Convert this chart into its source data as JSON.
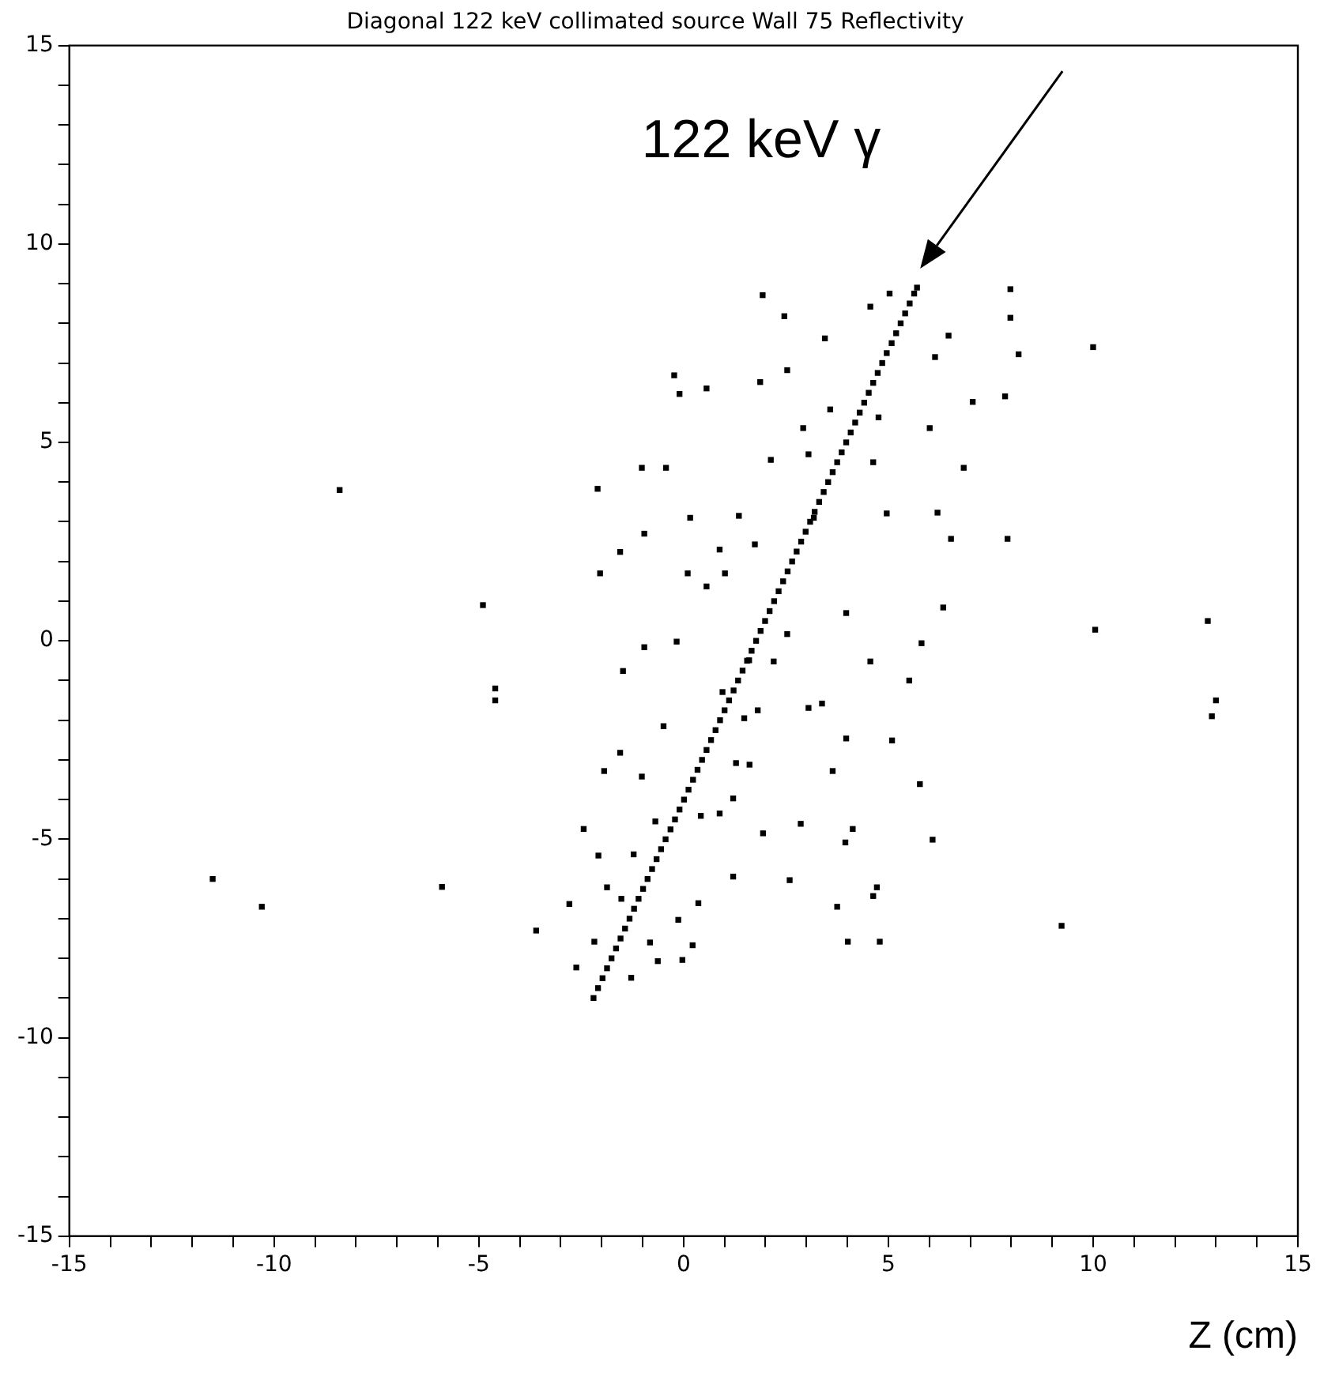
{
  "chart_data": {
    "type": "scatter",
    "title": "Diagonal 122 keV collimated source Wall 75 Reflectivity",
    "xlabel": "Z (cm)",
    "annotations": [
      {
        "text": "122 keV γ",
        "x": 5.7,
        "y": 8.9
      }
    ],
    "xlim": [
      -15,
      15
    ],
    "ylim": [
      -15,
      15
    ],
    "xticks": [
      -15,
      {
        "value": -14,
        "label": null
      },
      {
        "value": -13,
        "label": null
      },
      {
        "value": -12,
        "label": null
      },
      {
        "value": -11,
        "label": null
      },
      -10,
      {
        "value": -9,
        "label": null
      },
      {
        "value": -8,
        "label": null
      },
      {
        "value": -7,
        "label": null
      },
      {
        "value": -6,
        "label": null
      },
      -5,
      {
        "value": -4,
        "label": null
      },
      {
        "value": -3,
        "label": null
      },
      {
        "value": -2,
        "label": null
      },
      {
        "value": -1,
        "label": null
      },
      0,
      {
        "value": 1,
        "label": null
      },
      {
        "value": 2,
        "label": null
      },
      {
        "value": 3,
        "label": null
      },
      {
        "value": 4,
        "label": null
      },
      5,
      {
        "value": 6,
        "label": null
      },
      {
        "value": 7,
        "label": null
      },
      {
        "value": 8,
        "label": null
      },
      {
        "value": 9,
        "label": null
      },
      10,
      {
        "value": 11,
        "label": null
      },
      {
        "value": 12,
        "label": null
      },
      {
        "value": 13,
        "label": null
      },
      {
        "value": 14,
        "label": null
      },
      15
    ],
    "yticks": [
      -15,
      {
        "value": -14,
        "label": null
      },
      {
        "value": -13,
        "label": null
      },
      {
        "value": -12,
        "label": null
      },
      {
        "value": -11,
        "label": null
      },
      -10,
      {
        "value": -9,
        "label": null
      },
      {
        "value": -8,
        "label": null
      },
      {
        "value": -7,
        "label": null
      },
      {
        "value": -6,
        "label": null
      },
      -5,
      {
        "value": -4,
        "label": null
      },
      {
        "value": -3,
        "label": null
      },
      {
        "value": -2,
        "label": null
      },
      {
        "value": -1,
        "label": null
      },
      0,
      {
        "value": 1,
        "label": null
      },
      {
        "value": 2,
        "label": null
      },
      {
        "value": 3,
        "label": null
      },
      {
        "value": 4,
        "label": null
      },
      5,
      {
        "value": 6,
        "label": null
      },
      {
        "value": 7,
        "label": null
      },
      {
        "value": 8,
        "label": null
      },
      {
        "value": 9,
        "label": null
      },
      10,
      {
        "value": 11,
        "label": null
      },
      {
        "value": 12,
        "label": null
      },
      {
        "value": 13,
        "label": null
      },
      {
        "value": 14,
        "label": null
      },
      15
    ],
    "grid": false,
    "legend": false,
    "marker": "square",
    "series": [
      {
        "color": "#000000",
        "x": [
          -2.2,
          -2.09,
          -1.98,
          -1.87,
          -1.76,
          -1.65,
          -1.54,
          -1.43,
          -1.32,
          -1.21,
          -1.1,
          -0.99,
          -0.88,
          -0.77,
          -0.66,
          -0.55,
          -0.44,
          -0.32,
          -0.21,
          -0.1,
          0.01,
          0.12,
          0.23,
          0.34,
          0.45,
          0.56,
          0.67,
          0.78,
          0.89,
          1.0,
          1.11,
          1.22,
          1.33,
          1.44,
          1.55,
          1.66,
          1.77,
          1.88,
          1.99,
          2.1,
          2.21,
          2.32,
          2.43,
          2.54,
          2.65,
          2.76,
          2.87,
          2.98,
          3.09,
          3.2,
          3.31,
          3.42,
          3.53,
          3.64,
          3.75,
          3.86,
          3.97,
          4.08,
          4.19,
          4.3,
          4.41,
          4.52,
          4.63,
          4.74,
          4.85,
          4.96,
          5.08,
          5.19,
          5.3,
          5.41,
          5.52,
          5.63,
          5.7,
          -11.5,
          -10.3,
          -8.4,
          -5.9,
          -4.9,
          -4.6,
          -4.6,
          -3.6,
          10.0,
          10.05,
          12.8,
          13.0,
          12.9,
          9.23,
          8.18,
          7.98,
          7.98,
          7.85,
          7.06,
          2.46,
          1.93,
          -0.23,
          0.56,
          -0.1,
          1.87,
          2.53,
          -1.02,
          -0.43,
          -2.1,
          6.84,
          6.01,
          -0.96,
          0.16,
          1.35,
          -1.55,
          -2.04,
          4.96,
          6.2,
          6.53,
          7.91,
          6.34,
          5.81,
          4.56,
          3.97,
          0.88,
          0.1,
          1.01,
          -0.96,
          -0.17,
          -1.48,
          1.6,
          2.53,
          0.56,
          1.74,
          3.18,
          3.58,
          4.76,
          4.56,
          5.03,
          6.14,
          6.47,
          3.45,
          2.92,
          2.13,
          3.05,
          4.63,
          2.2,
          5.51,
          3.05,
          3.38,
          3.97,
          5.09,
          3.64,
          5.77,
          1.28,
          1.61,
          1.21,
          2.86,
          1.94,
          4.13,
          3.95,
          6.08,
          1.21,
          2.59,
          4.63,
          4.72,
          3.75,
          4.01,
          4.79,
          -2.44,
          -2.79,
          -2.18,
          -2.62,
          -1.94,
          -1.55,
          -1.02,
          -1.22,
          -1.87,
          -1.52,
          -0.82,
          -0.13,
          -0.03,
          -1.28,
          0.22,
          0.36,
          -0.63,
          0.88,
          0.42,
          1.48,
          1.81,
          0.95,
          -0.49,
          -0.69,
          -2.08
        ],
        "values": [
          -9.0,
          -8.75,
          -8.5,
          -8.25,
          -8.0,
          -7.75,
          -7.5,
          -7.25,
          -7.0,
          -6.75,
          -6.5,
          -6.25,
          -6.0,
          -5.75,
          -5.5,
          -5.25,
          -5.0,
          -4.75,
          -4.5,
          -4.25,
          -4.0,
          -3.75,
          -3.5,
          -3.25,
          -3.0,
          -2.75,
          -2.5,
          -2.25,
          -2.0,
          -1.75,
          -1.5,
          -1.25,
          -1.0,
          -0.75,
          -0.5,
          -0.25,
          0.0,
          0.25,
          0.5,
          0.75,
          1.0,
          1.25,
          1.5,
          1.75,
          2.0,
          2.25,
          2.5,
          2.75,
          3.0,
          3.25,
          3.5,
          3.75,
          4.0,
          4.25,
          4.5,
          4.75,
          5.0,
          5.25,
          5.5,
          5.75,
          6.0,
          6.25,
          6.5,
          6.75,
          7.0,
          7.25,
          7.5,
          7.75,
          8.0,
          8.25,
          8.5,
          8.75,
          8.9,
          -6.0,
          -6.7,
          3.8,
          -6.2,
          0.9,
          -1.2,
          -1.5,
          -7.3,
          7.4,
          0.28,
          0.5,
          -1.5,
          -1.9,
          -7.18,
          7.22,
          8.14,
          8.86,
          6.16,
          6.02,
          8.18,
          8.71,
          6.69,
          6.36,
          6.22,
          6.52,
          6.82,
          4.36,
          4.36,
          3.83,
          4.36,
          5.36,
          2.7,
          3.1,
          3.15,
          2.24,
          1.7,
          3.21,
          3.23,
          2.57,
          2.57,
          0.84,
          -0.06,
          -0.52,
          0.7,
          2.3,
          1.7,
          1.7,
          -0.16,
          -0.02,
          -0.76,
          -0.49,
          0.17,
          1.37,
          2.43,
          3.1,
          5.83,
          5.63,
          8.42,
          8.75,
          7.15,
          7.69,
          7.62,
          5.36,
          4.56,
          4.7,
          4.5,
          -0.52,
          -1.0,
          -1.69,
          -1.58,
          -2.46,
          -2.51,
          -3.28,
          -3.61,
          -3.08,
          -3.12,
          -3.97,
          -4.61,
          -4.85,
          -4.74,
          -5.08,
          -5.01,
          -5.94,
          -6.03,
          -6.43,
          -6.21,
          -6.7,
          -7.58,
          -7.58,
          -4.74,
          -6.63,
          -7.58,
          -8.23,
          -3.28,
          -2.82,
          -3.42,
          -5.38,
          -6.21,
          -6.5,
          -7.6,
          -7.03,
          -8.04,
          -8.49,
          -7.67,
          -6.61,
          -8.07,
          -4.35,
          -4.41,
          -1.95,
          -1.75,
          -1.29,
          -2.15,
          -4.55,
          -5.41
        ]
      }
    ]
  }
}
